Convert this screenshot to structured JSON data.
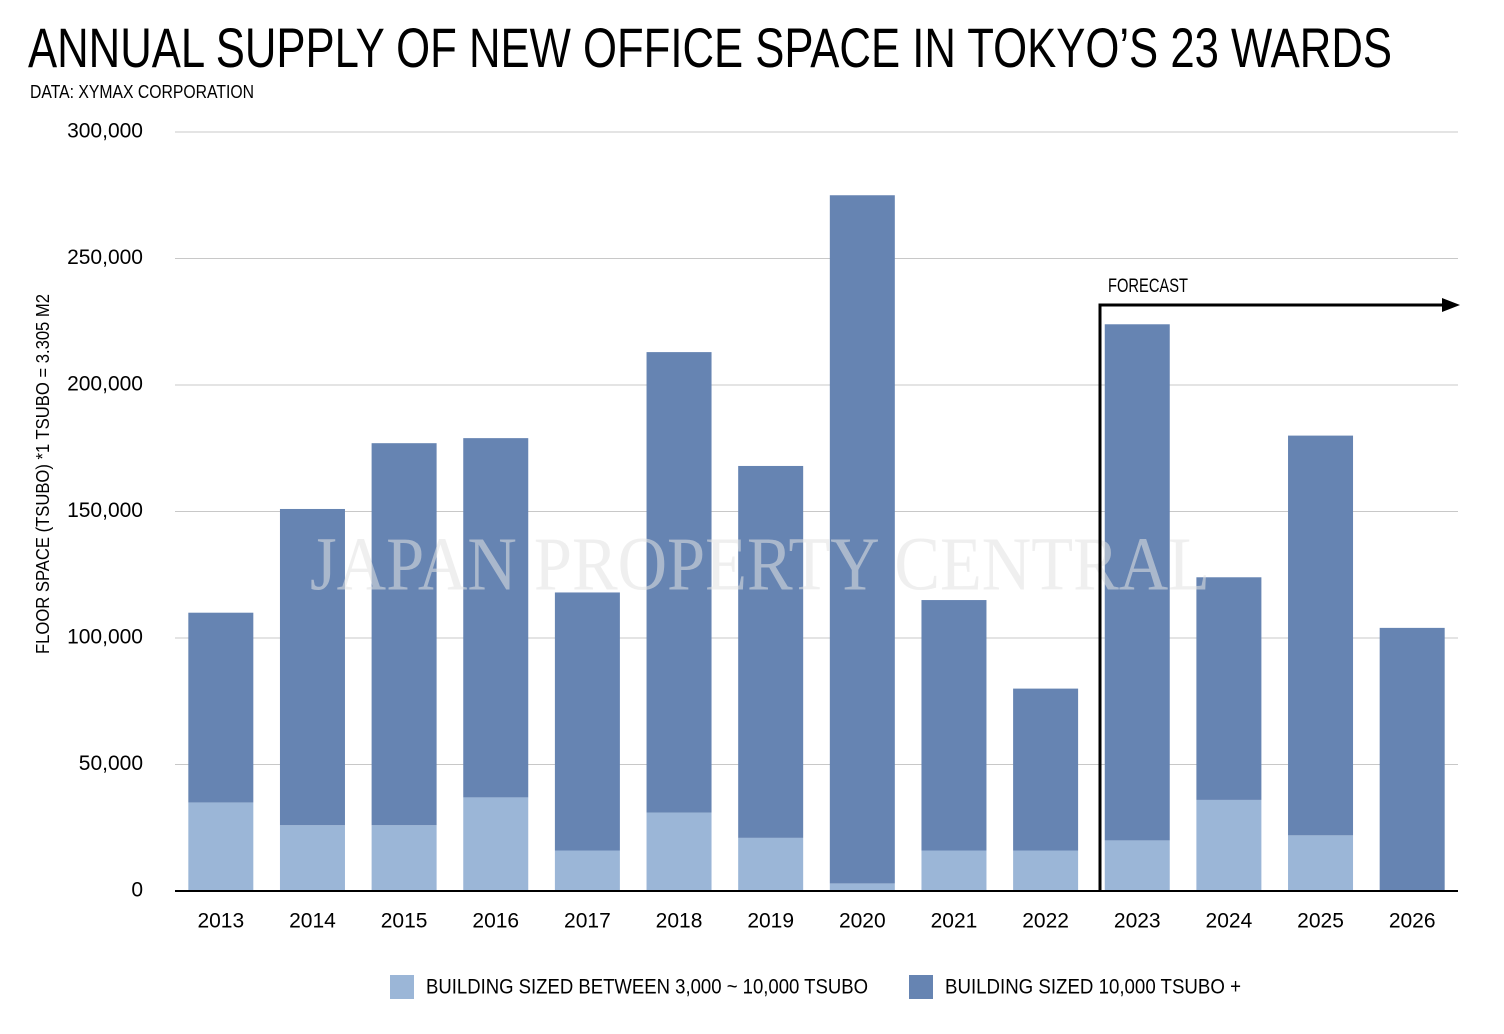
{
  "chart_data": {
    "type": "stacked_bar",
    "title": "ANNUAL SUPPLY OF NEW OFFICE SPACE IN TOKYO’S 23 WARDS",
    "subtitle": "DATA: XYMAX CORPORATION",
    "y_label": "FLOOR SPACE (TSUBO) *1 TSUBO = 3.305 M2",
    "annotation": "FORECAST",
    "watermark": "JAPAN PROPERTY CENTRAL",
    "categories": [
      "2013",
      "2014",
      "2015",
      "2016",
      "2017",
      "2018",
      "2019",
      "2020",
      "2021",
      "2022",
      "2023",
      "2024",
      "2025",
      "2026"
    ],
    "series": [
      {
        "name": "BUILDING SIZED BETWEEN 3,000 ~ 10,000 TSUBO",
        "color": "#9bb6d7",
        "values": [
          35000,
          26000,
          26000,
          37000,
          16000,
          31000,
          21000,
          3000,
          16000,
          16000,
          20000,
          36000,
          22000,
          0
        ]
      },
      {
        "name": "BUILDING SIZED 10,000 TSUBO +",
        "color": "#6684b2",
        "values": [
          75000,
          125000,
          151000,
          142000,
          102000,
          182000,
          147000,
          272000,
          99000,
          64000,
          204000,
          88000,
          158000,
          104000
        ]
      }
    ],
    "ylim": [
      0,
      300000
    ],
    "yticks": [
      0,
      {
        "value": 50000,
        "label": "50,000"
      },
      {
        "value": 100000,
        "label": "100,000"
      },
      {
        "value": 150000,
        "label": "150,000"
      },
      {
        "value": 200000,
        "label": "200,000"
      },
      {
        "value": 250000,
        "label": "250,000"
      },
      {
        "value": 300000,
        "label": "300,000"
      }
    ],
    "grid": true
  }
}
